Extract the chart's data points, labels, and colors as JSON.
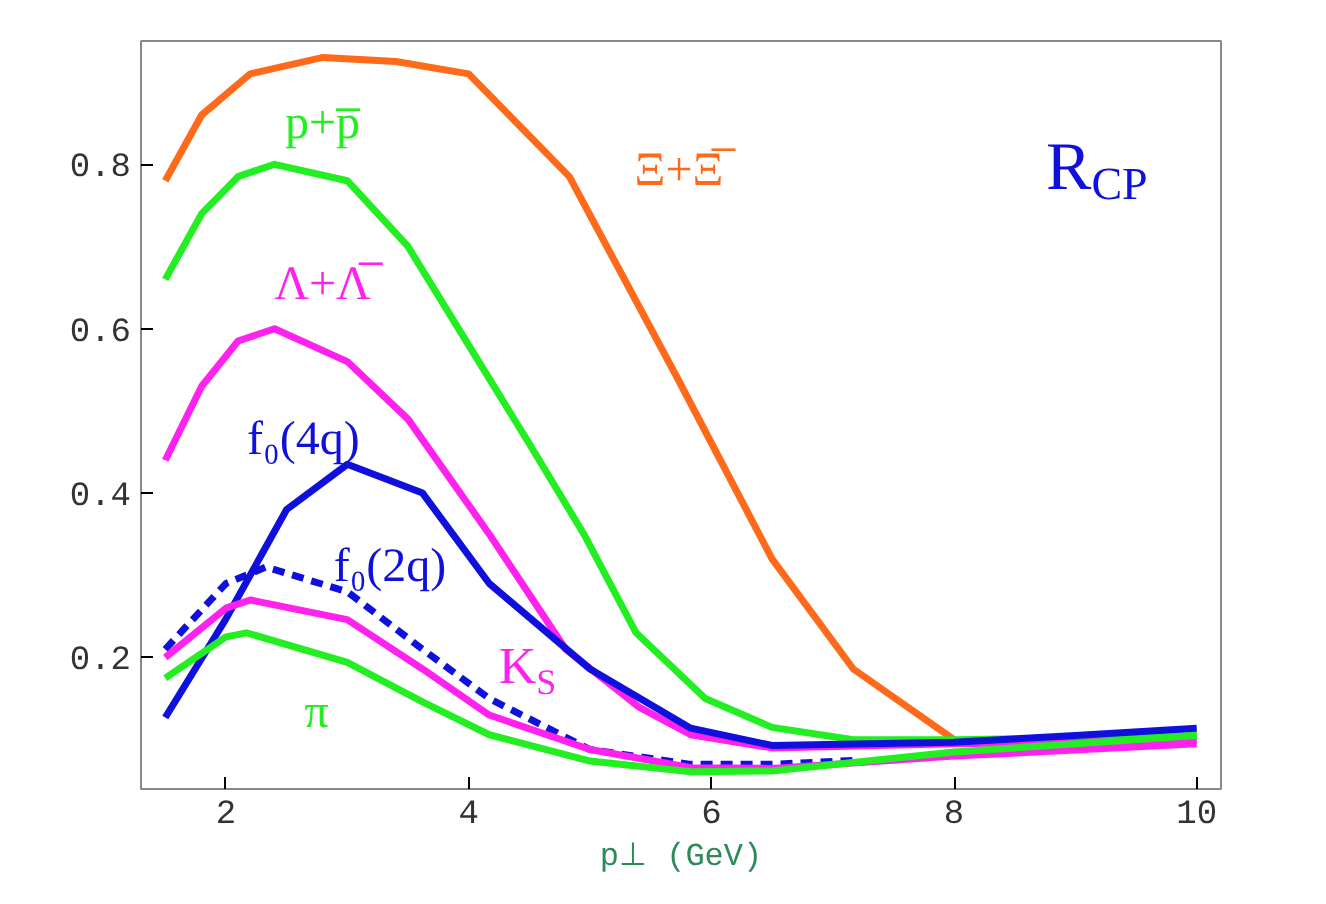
{
  "chart_data": {
    "type": "line",
    "xlabel": "p⊥ (GeV)",
    "xlim": [
      1.3,
      10.2
    ],
    "ylim": [
      0.04,
      0.95
    ],
    "xticks": [
      2,
      4,
      6,
      8,
      10
    ],
    "yticks": [
      0.2,
      0.4,
      0.6,
      0.8
    ],
    "grid": false,
    "legend": false,
    "line_style": "solid",
    "series": [
      {
        "name": "Ξ+Ξ̅",
        "color": "#ff6a1a",
        "x": [
          1.5,
          1.8,
          2.2,
          2.8,
          3.4,
          4,
          4.83,
          5.72,
          6.5,
          7.17,
          8
        ],
        "values": [
          0.78,
          0.86,
          0.91,
          0.93,
          0.925,
          0.91,
          0.785,
          0.54,
          0.32,
          0.186,
          0.1
        ]
      },
      {
        "name": "p+p̅",
        "color": "#22ee22",
        "x": [
          1.5,
          1.8,
          2.1,
          2.4,
          3,
          3.5,
          4,
          4.5,
          4.95,
          5.38,
          5.95,
          6.5,
          7.17,
          8,
          9,
          10
        ],
        "values": [
          0.66,
          0.74,
          0.785,
          0.8,
          0.78,
          0.7,
          0.58,
          0.46,
          0.35,
          0.23,
          0.15,
          0.115,
          0.1,
          0.1,
          0.102,
          0.105
        ]
      },
      {
        "name": "Λ+Λ̅",
        "color": "#ff22ee",
        "x": [
          1.5,
          1.8,
          2.1,
          2.4,
          3,
          3.5,
          4.17,
          4.8,
          5.4,
          5.83,
          6.5,
          8,
          9,
          10
        ],
        "values": [
          0.44,
          0.53,
          0.585,
          0.6,
          0.56,
          0.49,
          0.35,
          0.21,
          0.14,
          0.106,
          0.09,
          0.095,
          0.097,
          0.1
        ]
      },
      {
        "name": "f₀(4q)",
        "color": "#1010dd",
        "x": [
          1.5,
          2,
          2.5,
          3,
          3.62,
          4.17,
          5,
          5.83,
          6.5,
          8,
          9,
          10
        ],
        "values": [
          0.127,
          0.247,
          0.38,
          0.435,
          0.4,
          0.29,
          0.186,
          0.114,
          0.093,
          0.097,
          0.105,
          0.114
        ]
      },
      {
        "name": "f₀(2q)",
        "color": "#1010dd",
        "line_style": "dashed",
        "x": [
          1.5,
          2,
          2.33,
          3,
          3.62,
          4.17,
          5,
          5.83,
          6.5,
          7.2
        ],
        "values": [
          0.21,
          0.29,
          0.31,
          0.28,
          0.21,
          0.15,
          0.088,
          0.07,
          0.07,
          0.075
        ]
      },
      {
        "name": "K$_{S}$",
        "color": "#ff22ee",
        "x": [
          1.5,
          2,
          2.2,
          3,
          3.62,
          4.17,
          5,
          5.83,
          6.5,
          8,
          10
        ],
        "values": [
          0.2,
          0.26,
          0.27,
          0.246,
          0.186,
          0.13,
          0.088,
          0.066,
          0.065,
          0.08,
          0.095
        ]
      },
      {
        "name": "π",
        "color": "#22ee22",
        "x": [
          1.5,
          2,
          2.17,
          3,
          3.62,
          4.17,
          5,
          5.83,
          6.5,
          8,
          10
        ],
        "values": [
          0.175,
          0.225,
          0.23,
          0.194,
          0.146,
          0.106,
          0.074,
          0.061,
          0.062,
          0.085,
          0.105
        ]
      }
    ],
    "annotations": [
      "R$_{CP}$"
    ]
  }
}
